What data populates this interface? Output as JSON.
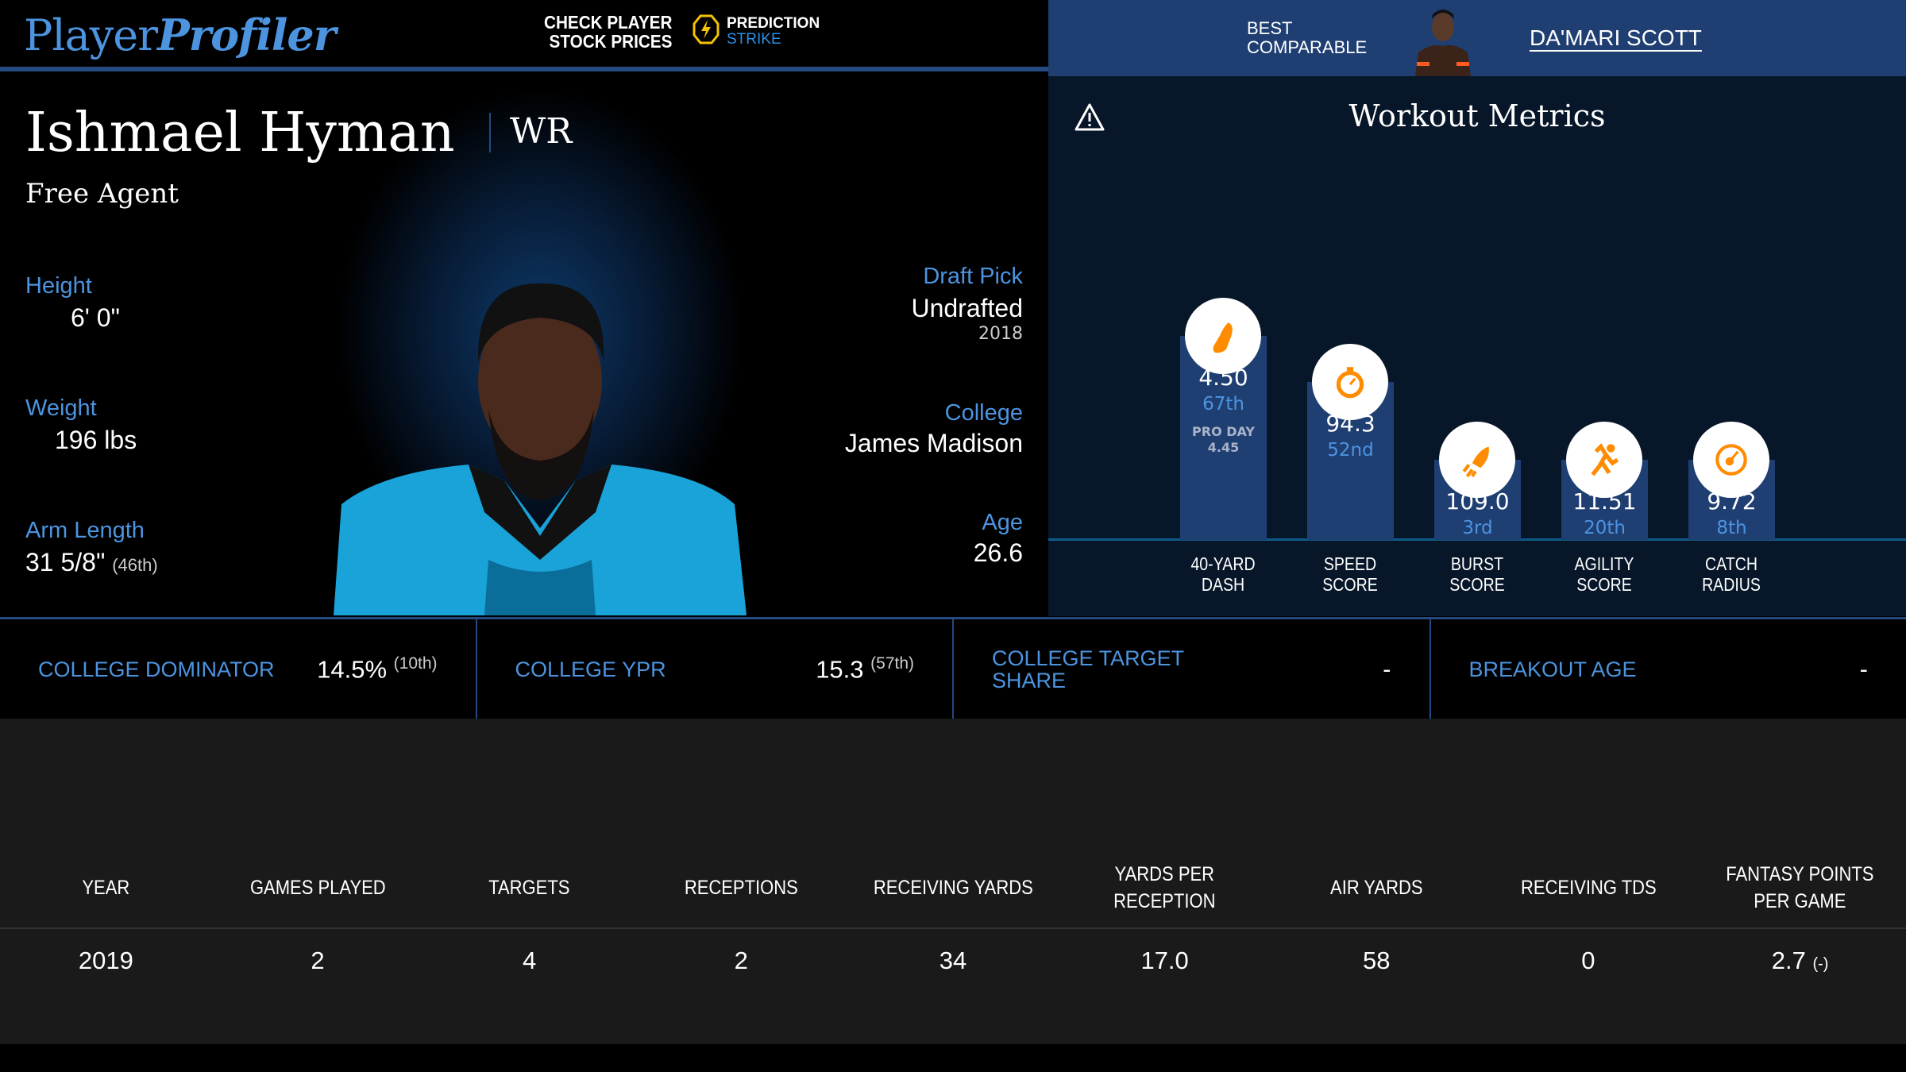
{
  "header": {
    "logo_player": "Player",
    "logo_profiler": "Profiler",
    "stock_line1": "CHECK PLAYER",
    "stock_line2": "STOCK PRICES",
    "prediction": "PREDICTION",
    "strike": "STRIKE",
    "best_line1": "BEST",
    "best_line2": "COMPARABLE",
    "comparable_name": "DA'MARI SCOTT"
  },
  "player": {
    "name": "Ishmael Hyman",
    "position": "WR",
    "team": "Free Agent",
    "height_label": "Height",
    "height": "6' 0\"",
    "weight_label": "Weight",
    "weight": "196 lbs",
    "arm_label": "Arm Length",
    "arm": "31 5/8\"",
    "arm_rank": "(46th)",
    "draft_label": "Draft Pick",
    "draft": "Undrafted",
    "draft_year": "2018",
    "college_label": "College",
    "college": "James Madison",
    "age_label": "Age",
    "age": "26.6"
  },
  "workout": {
    "title": "Workout Metrics",
    "metrics": [
      {
        "label1": "40-YARD",
        "label2": "DASH",
        "value": "4.50",
        "pct": "67th",
        "extra1": "PRO DAY",
        "extra2": "4.45",
        "icon": "shoe-icon"
      },
      {
        "label1": "SPEED",
        "label2": "SCORE",
        "value": "94.3",
        "pct": "52nd",
        "icon": "stopwatch-icon"
      },
      {
        "label1": "BURST",
        "label2": "SCORE",
        "value": "109.0",
        "pct": "3rd",
        "icon": "rocket-icon"
      },
      {
        "label1": "AGILITY",
        "label2": "SCORE",
        "value": "11.51",
        "pct": "20th",
        "icon": "runner-icon"
      },
      {
        "label1": "CATCH",
        "label2": "RADIUS",
        "value": "9.72",
        "pct": "8th",
        "icon": "target-icon"
      }
    ]
  },
  "college": [
    {
      "label": "COLLEGE DOMINATOR",
      "value": "14.5%",
      "rank": "(10th)"
    },
    {
      "label": "COLLEGE YPR",
      "value": "15.3",
      "rank": "(57th)"
    },
    {
      "label": "COLLEGE TARGET SHARE",
      "value": "-"
    },
    {
      "label": "BREAKOUT AGE",
      "value": "-"
    }
  ],
  "table": {
    "headers": [
      "YEAR",
      "GAMES PLAYED",
      "TARGETS",
      "RECEPTIONS",
      "RECEIVING YARDS",
      "YARDS PER RECEPTION",
      "AIR YARDS",
      "RECEIVING TDS",
      "FANTASY POINTS PER GAME"
    ],
    "rows": [
      [
        "2019",
        "2",
        "4",
        "2",
        "34",
        "17.0",
        "58",
        "0",
        "2.7"
      ]
    ],
    "fp_rank": "(-)"
  },
  "colors": {
    "accent": "#4c94e0",
    "navy": "#1f3f73",
    "orange": "#ff8c00"
  }
}
